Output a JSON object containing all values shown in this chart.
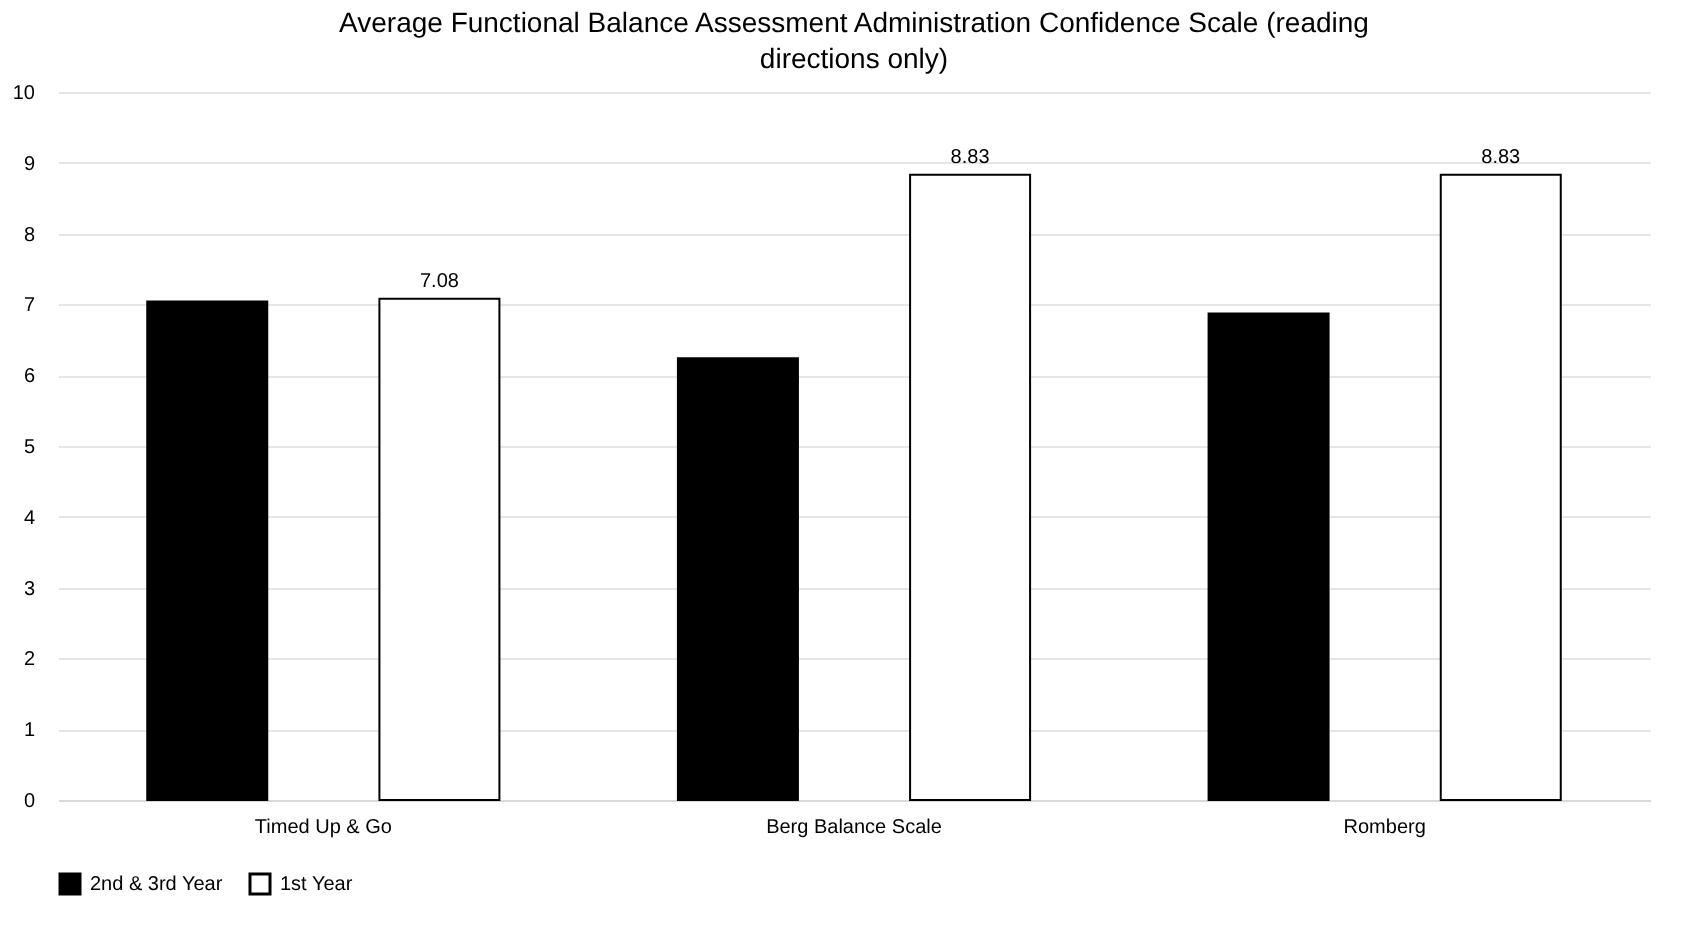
{
  "chart_data": {
    "type": "bar",
    "title": "Average Functional Balance Assessment Administration Confidence Scale (reading directions only)",
    "categories": [
      "Timed Up & Go",
      "Berg Balance Scale",
      "Romberg"
    ],
    "series": [
      {
        "name": "2nd & 3rd Year",
        "color": "#000000",
        "values": [
          7.04,
          6.24,
          6.87
        ]
      },
      {
        "name": "1st Year",
        "color": "#ffffff",
        "values": [
          7.08,
          8.83,
          8.83
        ],
        "value_labels": [
          "7.08",
          "8.83",
          "8.83"
        ]
      }
    ],
    "ylim": [
      0,
      10
    ],
    "yticks": [
      0,
      1,
      2,
      3,
      4,
      5,
      6,
      7,
      8,
      9,
      10
    ],
    "grid": "y",
    "legend": "bottom"
  }
}
